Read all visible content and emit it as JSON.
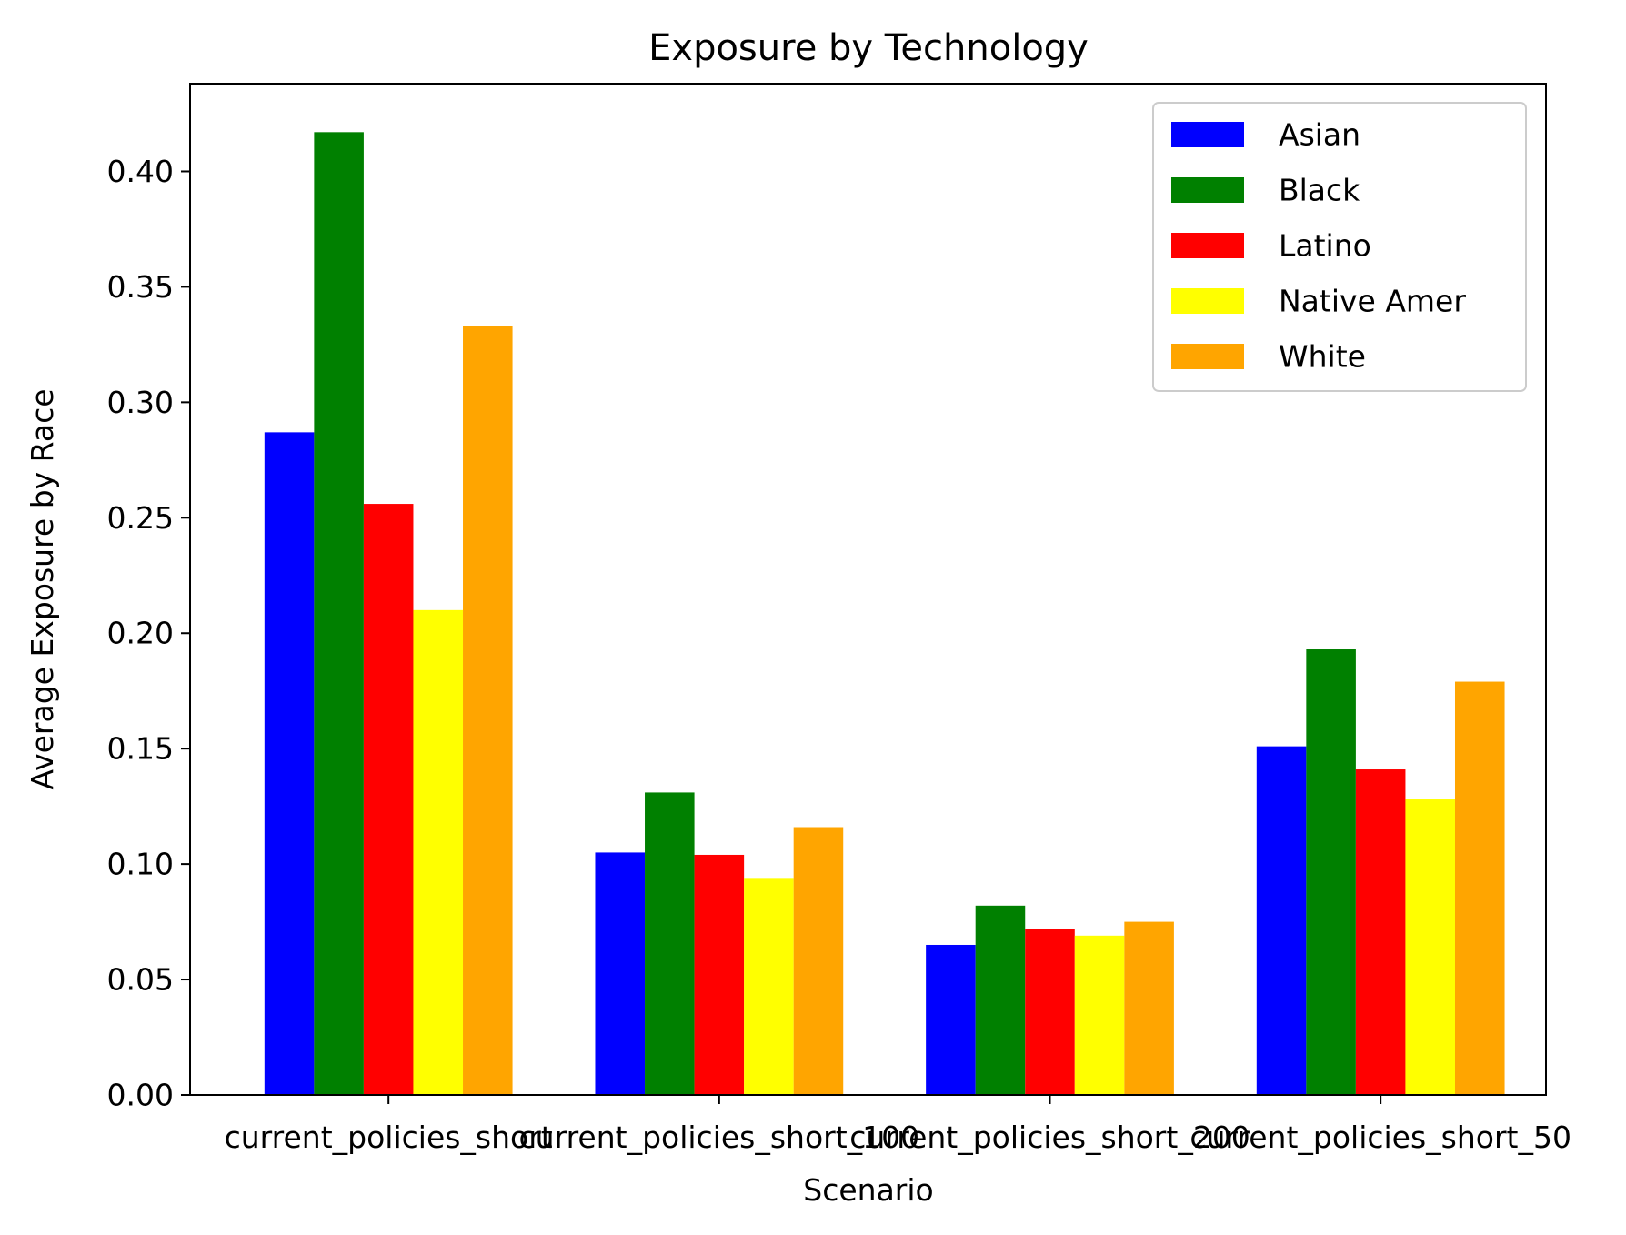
{
  "chart_data": {
    "type": "bar",
    "title": "Exposure by Technology",
    "xlabel": "Scenario",
    "ylabel": "Average Exposure by Race",
    "categories": [
      "current_policies_short",
      "current_policies_short_100",
      "current_policies_short_200",
      "current_policies_short_50"
    ],
    "series": [
      {
        "name": "Asian",
        "color": "#0000ff",
        "values": [
          0.287,
          0.105,
          0.065,
          0.151
        ]
      },
      {
        "name": "Black",
        "color": "#008000",
        "values": [
          0.417,
          0.131,
          0.082,
          0.193
        ]
      },
      {
        "name": "Latino",
        "color": "#ff0000",
        "values": [
          0.256,
          0.104,
          0.072,
          0.141
        ]
      },
      {
        "name": "Native Amer",
        "color": "#ffff00",
        "values": [
          0.21,
          0.094,
          0.069,
          0.128
        ]
      },
      {
        "name": "White",
        "color": "#ffa500",
        "values": [
          0.333,
          0.116,
          0.075,
          0.179
        ]
      }
    ],
    "ylim": [
      0,
      0.438
    ],
    "yticks": [
      0.0,
      0.05,
      0.1,
      0.15,
      0.2,
      0.25,
      0.3,
      0.35,
      0.4
    ],
    "ytick_labels": [
      "0.00",
      "0.05",
      "0.10",
      "0.15",
      "0.20",
      "0.25",
      "0.30",
      "0.35",
      "0.40"
    ],
    "grid": false,
    "legend_position": "top-right"
  }
}
